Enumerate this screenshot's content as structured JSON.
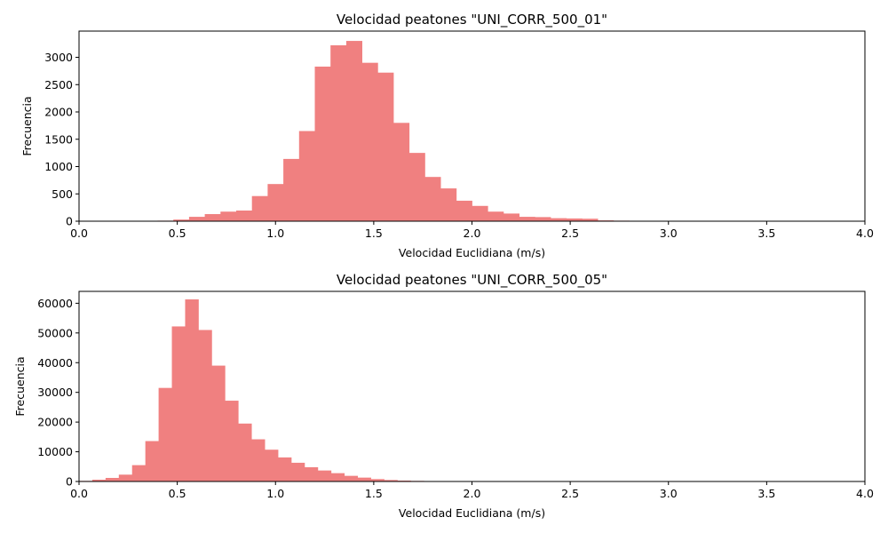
{
  "chart_data": [
    {
      "type": "bar",
      "title": "Velocidad peatones \"UNI_CORR_500_01\"",
      "xlabel": "Velocidad Euclidiana (m/s)",
      "ylabel": "Frecuencia",
      "xlim": [
        0,
        4
      ],
      "ylim": [
        0,
        3480
      ],
      "xticks": [
        0,
        0.5,
        1,
        1.5,
        2,
        2.5,
        3,
        3.5,
        4
      ],
      "xtick_labels": [
        "0.0",
        "0.5",
        "1.0",
        "1.5",
        "2.0",
        "2.5",
        "3.0",
        "3.5",
        "4.0"
      ],
      "yticks": [
        0,
        500,
        1000,
        1500,
        2000,
        2500,
        3000
      ],
      "ytick_labels": [
        "0",
        "500",
        "1000",
        "1500",
        "2000",
        "2500",
        "3000"
      ],
      "bar_color": "#f08080",
      "bin_edges": [
        0.4,
        0.48,
        0.56,
        0.64,
        0.72,
        0.8,
        0.88,
        0.96,
        1.04,
        1.12,
        1.2,
        1.28,
        1.36,
        1.44,
        1.52,
        1.6,
        1.68,
        1.76,
        1.84,
        1.92,
        2.0,
        2.08,
        2.16,
        2.24,
        2.32,
        2.4,
        2.48,
        2.56,
        2.64,
        2.72,
        2.8,
        2.88
      ],
      "values": [
        10,
        30,
        80,
        130,
        175,
        195,
        460,
        680,
        1140,
        1650,
        2830,
        3220,
        3300,
        2900,
        2720,
        1800,
        1250,
        810,
        600,
        375,
        280,
        175,
        140,
        80,
        75,
        55,
        50,
        45,
        15,
        10,
        5
      ]
    },
    {
      "type": "bar",
      "title": "Velocidad peatones \"UNI_CORR_500_05\"",
      "xlabel": "Velocidad Euclidiana (m/s)",
      "ylabel": "Frecuencia",
      "xlim": [
        0,
        4
      ],
      "ylim": [
        0,
        64000
      ],
      "xticks": [
        0,
        0.5,
        1,
        1.5,
        2,
        2.5,
        3,
        3.5,
        4
      ],
      "xtick_labels": [
        "0.0",
        "0.5",
        "1.0",
        "1.5",
        "2.0",
        "2.5",
        "3.0",
        "3.5",
        "4.0"
      ],
      "yticks": [
        0,
        10000,
        20000,
        30000,
        40000,
        50000,
        60000
      ],
      "ytick_labels": [
        "0",
        "10000",
        "20000",
        "30000",
        "40000",
        "50000",
        "60000"
      ],
      "bar_color": "#f08080",
      "bin_edges": [
        0.0,
        0.0675,
        0.135,
        0.2025,
        0.27,
        0.3375,
        0.405,
        0.4725,
        0.54,
        0.6075,
        0.675,
        0.7425,
        0.81,
        0.8775,
        0.945,
        1.0125,
        1.08,
        1.1475,
        1.215,
        1.2825,
        1.35,
        1.4175,
        1.485,
        1.5525,
        1.62,
        1.6875,
        1.755,
        1.8225,
        1.89,
        1.9575,
        2.025
      ],
      "values": [
        200,
        600,
        1200,
        2300,
        5500,
        13600,
        31500,
        52200,
        61300,
        51000,
        39000,
        27200,
        19500,
        14200,
        10700,
        8100,
        6300,
        4800,
        3700,
        2800,
        1900,
        1300,
        800,
        500,
        300,
        200,
        150,
        100,
        80,
        50
      ]
    }
  ]
}
